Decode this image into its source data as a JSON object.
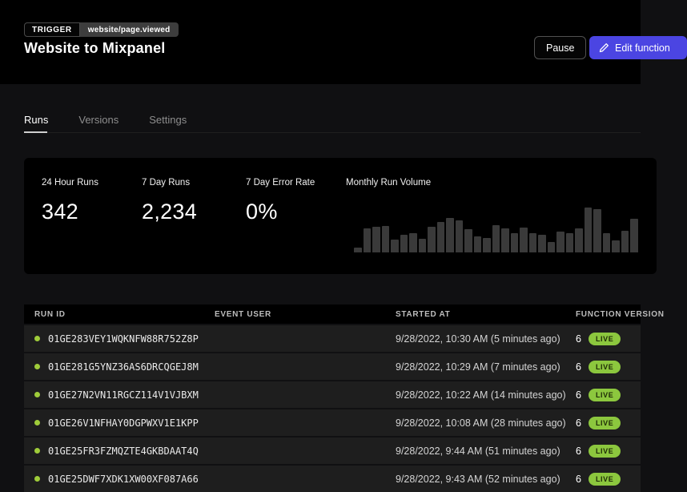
{
  "header": {
    "trigger_label": "TRIGGER",
    "trigger_event": "website/page.viewed",
    "title": "Website to Mixpanel",
    "pause_label": "Pause",
    "edit_label": "Edit function"
  },
  "tabs": {
    "runs": "Runs",
    "versions": "Versions",
    "settings": "Settings",
    "active": "Runs"
  },
  "stats": [
    {
      "label": "24 Hour Runs",
      "value": "342"
    },
    {
      "label": "7 Day Runs",
      "value": "2,234"
    },
    {
      "label": "7 Day Error Rate",
      "value": "0%"
    }
  ],
  "chart_data": {
    "type": "bar",
    "title": "Monthly Run Volume",
    "xlabel": "",
    "ylabel": "",
    "ylim": [
      0,
      100
    ],
    "grid": false,
    "note": "unlabeled sparkline; values are relative heights in percent of tallest bar",
    "values": [
      11,
      54,
      58,
      59,
      29,
      39,
      43,
      31,
      57,
      67,
      77,
      71,
      51,
      36,
      33,
      60,
      53,
      42,
      55,
      42,
      39,
      23,
      47,
      43,
      54,
      100,
      96,
      43,
      27,
      49,
      75
    ],
    "bar_color": "#3a3a3a"
  },
  "table": {
    "columns": [
      "Run ID",
      "Event User",
      "Started At",
      "Function Version"
    ],
    "rows": [
      {
        "run_id": "01GE283VEY1WQKNFW88R752Z8P",
        "event_user": "",
        "started_at": "9/28/2022, 10:30 AM (5 minutes ago)",
        "version": "6",
        "badge": "LIVE"
      },
      {
        "run_id": "01GE281G5YNZ36AS6DRCQGEJ8M",
        "event_user": "",
        "started_at": "9/28/2022, 10:29 AM (7 minutes ago)",
        "version": "6",
        "badge": "LIVE"
      },
      {
        "run_id": "01GE27N2VN11RGCZ114V1VJBXM",
        "event_user": "",
        "started_at": "9/28/2022, 10:22 AM (14 minutes ago)",
        "version": "6",
        "badge": "LIVE"
      },
      {
        "run_id": "01GE26V1NFHAY0DGPWXV1E1KPP",
        "event_user": "",
        "started_at": "9/28/2022, 10:08 AM (28 minutes ago)",
        "version": "6",
        "badge": "LIVE"
      },
      {
        "run_id": "01GE25FR3FZMQZTE4GKBDAAT4Q",
        "event_user": "",
        "started_at": "9/28/2022, 9:44 AM (51 minutes ago)",
        "version": "6",
        "badge": "LIVE"
      },
      {
        "run_id": "01GE25DWF7XDK1XW00XF087A66",
        "event_user": "",
        "started_at": "9/28/2022, 9:43 AM (52 minutes ago)",
        "version": "6",
        "badge": "LIVE"
      }
    ]
  },
  "colors": {
    "accent": "#4b45e2",
    "live_badge": "#8cc73e",
    "run_dot": "#9fcc3a",
    "card_bg": "#000000",
    "page_bg": "#101012",
    "row_bg": "#1e1e1e",
    "bar": "#3a3a3a"
  }
}
